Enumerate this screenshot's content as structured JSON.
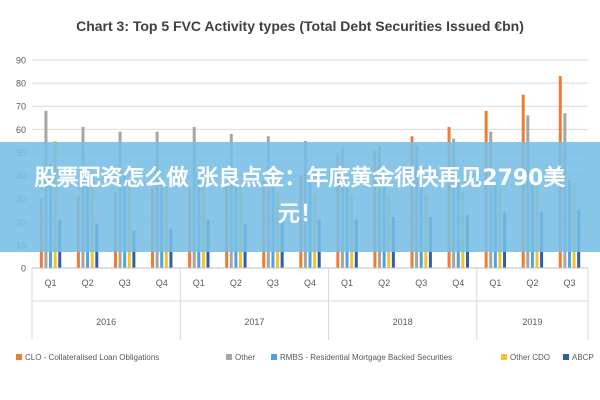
{
  "chart_data": {
    "type": "bar",
    "title": "Chart 3: Top 5 FVC Activity types (Total Debt Securities Issued €bn)",
    "xlabel": "",
    "ylabel": "",
    "ylim": [
      0,
      90
    ],
    "yticks": [
      0,
      10,
      20,
      30,
      40,
      50,
      60,
      70,
      80,
      90
    ],
    "grid": true,
    "legend_position": "bottom",
    "categories": [
      "Q1",
      "Q2",
      "Q3",
      "Q4",
      "Q1",
      "Q2",
      "Q3",
      "Q4",
      "Q1",
      "Q2",
      "Q3",
      "Q4",
      "Q1",
      "Q2",
      "Q3"
    ],
    "groups": [
      {
        "label": "2016",
        "count": 4
      },
      {
        "label": "2017",
        "count": 4
      },
      {
        "label": "2018",
        "count": 4
      },
      {
        "label": "2019",
        "count": 3
      }
    ],
    "series": [
      {
        "name": "CLO - Collateralised Loan Obligations",
        "color": "#ed7d31",
        "values": [
          30,
          31,
          33,
          34,
          35,
          36,
          38,
          40,
          49,
          51,
          57,
          61,
          68,
          75,
          83
        ]
      },
      {
        "name": "Other",
        "color": "#a5a5a5",
        "values": [
          68,
          61,
          59,
          59,
          61,
          58,
          57,
          55,
          52,
          53,
          53,
          56,
          59,
          66,
          67
        ]
      },
      {
        "name": "RMBS - Residential Mortgage Backed Securities",
        "color": "#4ea3d9",
        "values": [
          45,
          44,
          40,
          39,
          40,
          38,
          37,
          37,
          37,
          36,
          36,
          37,
          37,
          38,
          38
        ]
      },
      {
        "name": "Other CDO",
        "color": "#f2c42b",
        "values": [
          55,
          40,
          36,
          35,
          36,
          35,
          33,
          32,
          32,
          31,
          32,
          33,
          35,
          36,
          37
        ]
      },
      {
        "name": "ABCP",
        "color": "#2f5fa8",
        "values": [
          21,
          19,
          16,
          17,
          21,
          19,
          20,
          21,
          21,
          22,
          22,
          23,
          24,
          24,
          25
        ]
      }
    ]
  },
  "overlay": {
    "text": "股票配资怎么做 张良点金：年底黄金很快再见2790美元！"
  }
}
